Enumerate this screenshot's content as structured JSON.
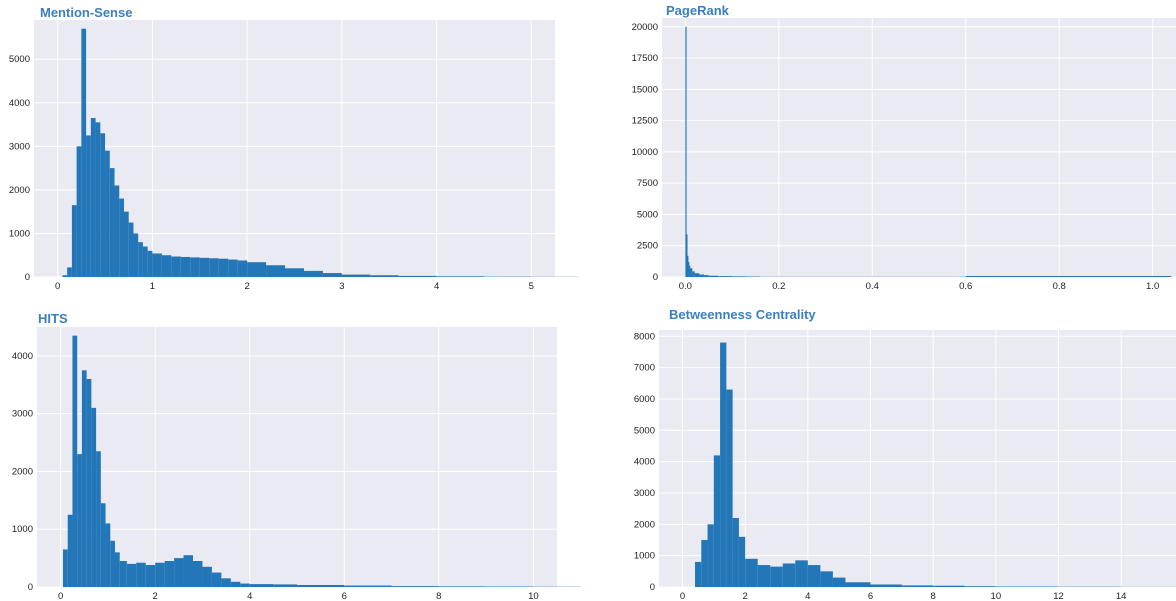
{
  "colors": {
    "bar": "#2376b7",
    "plot_bg": "#e9eaf2",
    "grid": "#ffffff",
    "title": "#3a7fc1"
  },
  "chart_data": [
    {
      "type": "bar",
      "title": "Mention-Sense",
      "xlabel": "",
      "ylabel": "",
      "xlim": [
        -0.25,
        5.25
      ],
      "ylim": [
        0,
        5900
      ],
      "x_ticks": [
        0,
        1,
        2,
        3,
        4,
        5
      ],
      "y_ticks": [
        0,
        1000,
        2000,
        3000,
        4000,
        5000
      ],
      "grid": true,
      "series": [
        {
          "x": [
            0.0,
            0.05,
            0.1,
            0.15,
            0.2,
            0.25,
            0.3,
            0.35,
            0.4,
            0.45,
            0.5,
            0.55,
            0.6,
            0.65,
            0.7,
            0.75,
            0.8,
            0.85,
            0.9,
            0.95,
            1.0,
            1.1,
            1.2,
            1.3,
            1.4,
            1.5,
            1.6,
            1.7,
            1.8,
            1.9,
            2.0,
            2.2,
            2.4,
            2.6,
            2.8,
            3.0,
            3.3,
            3.6,
            4.0,
            4.5,
            5.0
          ],
          "values": [
            0,
            40,
            220,
            1650,
            3000,
            5700,
            3250,
            3650,
            3550,
            3300,
            2900,
            2500,
            2100,
            1800,
            1500,
            1250,
            1000,
            800,
            700,
            600,
            540,
            500,
            470,
            460,
            450,
            440,
            430,
            420,
            400,
            380,
            340,
            270,
            200,
            140,
            90,
            55,
            40,
            25,
            15,
            8,
            5
          ]
        }
      ]
    },
    {
      "type": "bar",
      "title": "PageRank",
      "xlabel": "",
      "ylabel": "",
      "xlim": [
        -0.05,
        1.05
      ],
      "ylim": [
        0,
        20700
      ],
      "x_ticks": [
        0.0,
        0.2,
        0.4,
        0.6,
        0.8,
        1.0
      ],
      "x_tick_labels": [
        "0.0",
        "0.2",
        "0.4",
        "0.6",
        "0.8",
        "1.0"
      ],
      "y_ticks": [
        0,
        2500,
        5000,
        7500,
        10000,
        12500,
        15000,
        17500,
        20000
      ],
      "grid": true,
      "series": [
        {
          "x": [
            0.0,
            0.002,
            0.004,
            0.006,
            0.008,
            0.01,
            0.015,
            0.02,
            0.03,
            0.04,
            0.05,
            0.07,
            0.1,
            0.13,
            0.16,
            0.6
          ],
          "values": [
            20000,
            3400,
            1700,
            1200,
            900,
            700,
            450,
            300,
            200,
            150,
            100,
            70,
            50,
            35,
            20,
            80
          ]
        }
      ]
    },
    {
      "type": "bar",
      "title": "HITS",
      "xlabel": "",
      "ylabel": "",
      "xlim": [
        -0.5,
        10.5
      ],
      "ylim": [
        0,
        4500
      ],
      "x_ticks": [
        0,
        2,
        4,
        6,
        8,
        10
      ],
      "y_ticks": [
        0,
        1000,
        2000,
        3000,
        4000
      ],
      "grid": true,
      "series": [
        {
          "x": [
            0.0,
            0.05,
            0.15,
            0.25,
            0.35,
            0.45,
            0.55,
            0.65,
            0.75,
            0.85,
            0.95,
            1.05,
            1.15,
            1.25,
            1.4,
            1.6,
            1.8,
            2.0,
            2.2,
            2.4,
            2.6,
            2.8,
            3.0,
            3.2,
            3.4,
            3.6,
            3.8,
            4.0,
            4.5,
            5.0,
            6.0,
            7.0,
            8.0,
            9.0,
            10.0
          ],
          "values": [
            0,
            650,
            1250,
            4350,
            2300,
            3750,
            3600,
            3100,
            2350,
            1450,
            1100,
            800,
            600,
            450,
            400,
            420,
            380,
            420,
            450,
            500,
            550,
            450,
            350,
            250,
            150,
            90,
            60,
            50,
            45,
            35,
            25,
            15,
            10,
            8,
            5
          ]
        }
      ]
    },
    {
      "type": "bar",
      "title": "Betweenness Centrality",
      "xlabel": "",
      "ylabel": "",
      "xlim": [
        -0.75,
        15.75
      ],
      "ylim": [
        0,
        8200
      ],
      "x_ticks": [
        0,
        2,
        4,
        6,
        8,
        10,
        12,
        14
      ],
      "y_ticks": [
        0,
        1000,
        2000,
        3000,
        4000,
        5000,
        6000,
        7000,
        8000
      ],
      "grid": true,
      "series": [
        {
          "x": [
            0.0,
            0.4,
            0.6,
            0.8,
            1.0,
            1.2,
            1.4,
            1.6,
            1.8,
            2.0,
            2.4,
            2.8,
            3.2,
            3.6,
            4.0,
            4.4,
            4.8,
            5.2,
            6.0,
            7.0,
            8.0,
            9.0,
            10.0,
            12.0,
            14.0,
            15.0
          ],
          "values": [
            0,
            800,
            1500,
            2000,
            4200,
            7800,
            6300,
            2200,
            1600,
            900,
            700,
            650,
            750,
            850,
            700,
            500,
            300,
            150,
            80,
            50,
            40,
            25,
            15,
            10,
            5,
            5
          ]
        }
      ]
    }
  ]
}
